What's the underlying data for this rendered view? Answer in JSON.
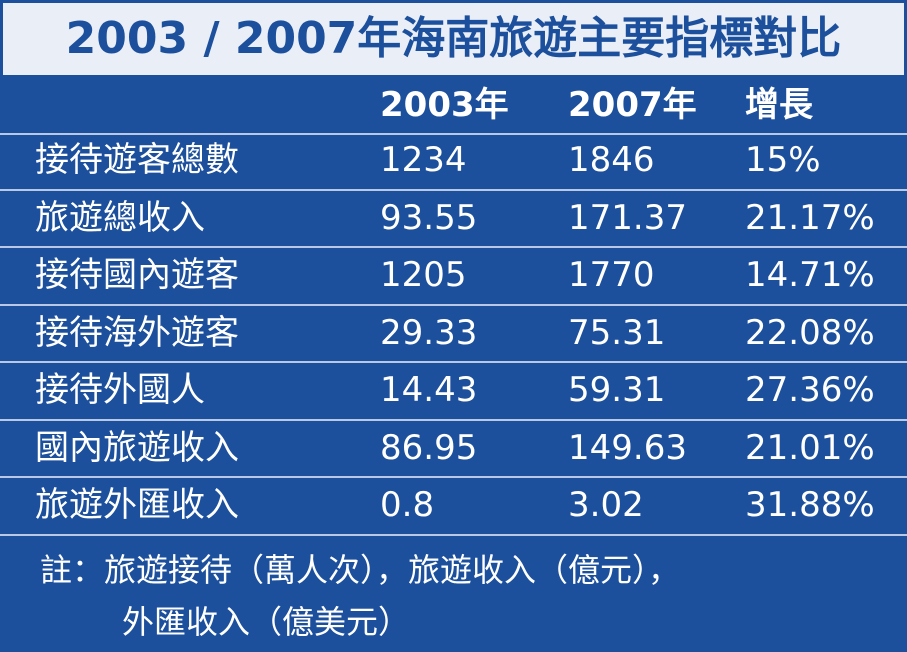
{
  "title": "2003 / 2007年海南旅遊主要指標對比",
  "table": {
    "header": [
      "2003年",
      "2007年",
      "增長"
    ],
    "rows": [
      [
        "接待遊客總數",
        "1234",
        "1846",
        "15%"
      ],
      [
        "旅遊總收入",
        "93.55",
        "171.37",
        "21.17%"
      ],
      [
        "接待國內遊客",
        "1205",
        "1770",
        "14.71%"
      ],
      [
        "接待海外遊客",
        "29.33",
        "75.31",
        "22.08%"
      ],
      [
        "接待外國人",
        "14.43",
        "59.31",
        "27.36%"
      ],
      [
        "國內旅遊收入",
        "86.95",
        "149.63",
        "21.01%"
      ],
      [
        "旅遊外匯收入",
        "0.8",
        "3.02",
        "31.88%"
      ]
    ]
  },
  "note": [
    "註：旅遊接待（萬人次），旅遊收入（億元），",
    "外匯收入（億美元）"
  ]
}
